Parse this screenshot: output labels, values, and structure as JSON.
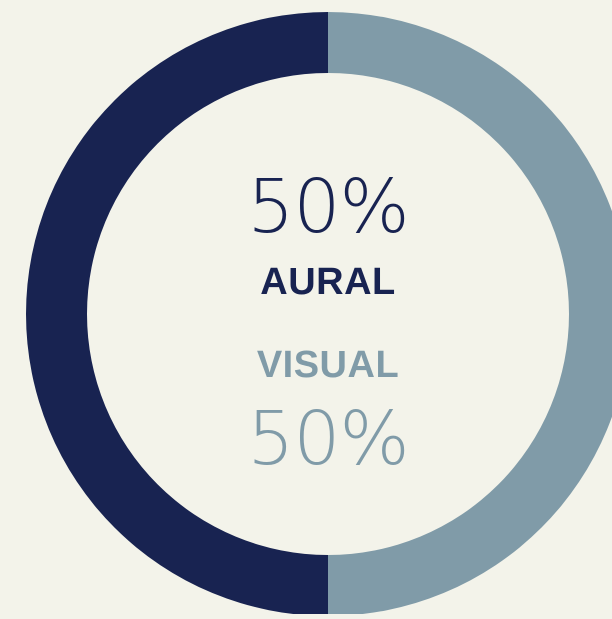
{
  "chart_data": {
    "type": "pie",
    "donut": true,
    "categories": [
      "AURAL",
      "VISUAL"
    ],
    "values": [
      50,
      50
    ],
    "labels": [
      {
        "name": "AURAL",
        "percent_text": "50%"
      },
      {
        "name": "VISUAL",
        "percent_text": "50%"
      }
    ],
    "colors": [
      "#182351",
      "#809ba8"
    ],
    "background": "#f3f3ea"
  }
}
